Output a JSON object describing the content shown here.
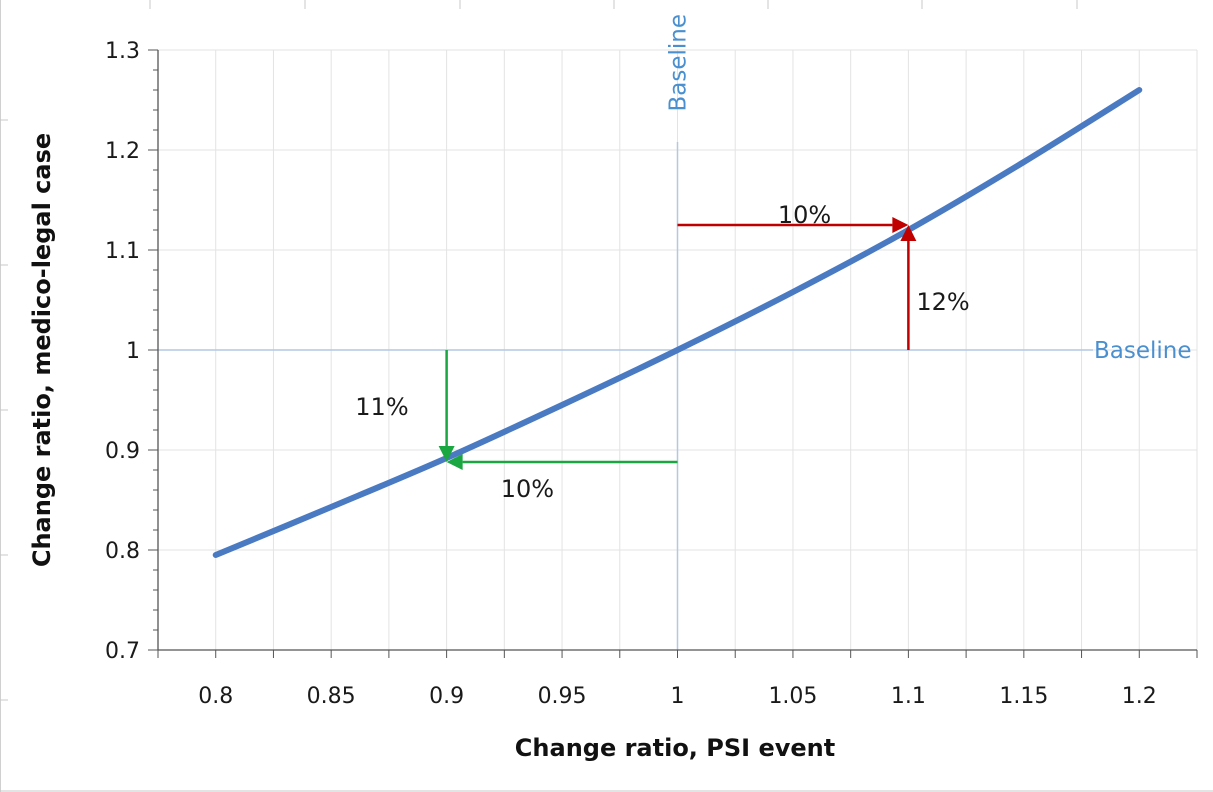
{
  "chart_data": {
    "type": "line",
    "xlabel": "Change ratio, PSI event",
    "ylabel": "Change ratio, medico-legal case",
    "xlim": [
      0.775,
      1.225
    ],
    "ylim": [
      0.7,
      1.3
    ],
    "x_ticks": [
      "0.8",
      "0.85",
      "0.9",
      "0.95",
      "1",
      "1.05",
      "1.1",
      "1.15",
      "1.2"
    ],
    "y_ticks": [
      "0.7",
      "0.8",
      "0.9",
      "1",
      "1.1",
      "1.2",
      "1.3"
    ],
    "x_tick_values": [
      0.8,
      0.85,
      0.9,
      0.95,
      1.0,
      1.05,
      1.1,
      1.15,
      1.2
    ],
    "y_tick_values": [
      0.7,
      0.8,
      0.9,
      1.0,
      1.1,
      1.2,
      1.3
    ],
    "grid": true,
    "series": [
      {
        "color": "#4a7ac2",
        "x": [
          0.8,
          0.85,
          0.9,
          0.95,
          1.0,
          1.05,
          1.1,
          1.15,
          1.2
        ],
        "y": [
          0.795,
          0.843,
          0.892,
          0.945,
          1.0,
          1.058,
          1.12,
          1.188,
          1.26
        ]
      }
    ],
    "baselines": [
      {
        "orientation": "vertical",
        "value": 1.0,
        "label": "Baseline",
        "color": "#4a90d0"
      },
      {
        "orientation": "horizontal",
        "value": 1.0,
        "label": "Baseline",
        "color": "#4a90d0"
      }
    ],
    "annotations": [
      {
        "label": "10%",
        "color": "#c00000",
        "from": [
          1.0,
          1.125
        ],
        "to": [
          1.1,
          1.125
        ],
        "text_at": [
          1.055,
          1.135
        ]
      },
      {
        "label": "12%",
        "color": "#c00000",
        "from": [
          1.1,
          1.0
        ],
        "to": [
          1.1,
          1.125
        ],
        "text_at": [
          1.115,
          1.048
        ]
      },
      {
        "label": "10%",
        "color": "#1aa640",
        "from": [
          1.0,
          0.888
        ],
        "to": [
          0.9,
          0.888
        ],
        "text_at": [
          0.935,
          0.861
        ]
      },
      {
        "label": "11%",
        "color": "#1aa640",
        "from": [
          0.9,
          1.0
        ],
        "to": [
          0.9,
          0.888
        ],
        "text_at": [
          0.872,
          0.943
        ]
      }
    ]
  }
}
